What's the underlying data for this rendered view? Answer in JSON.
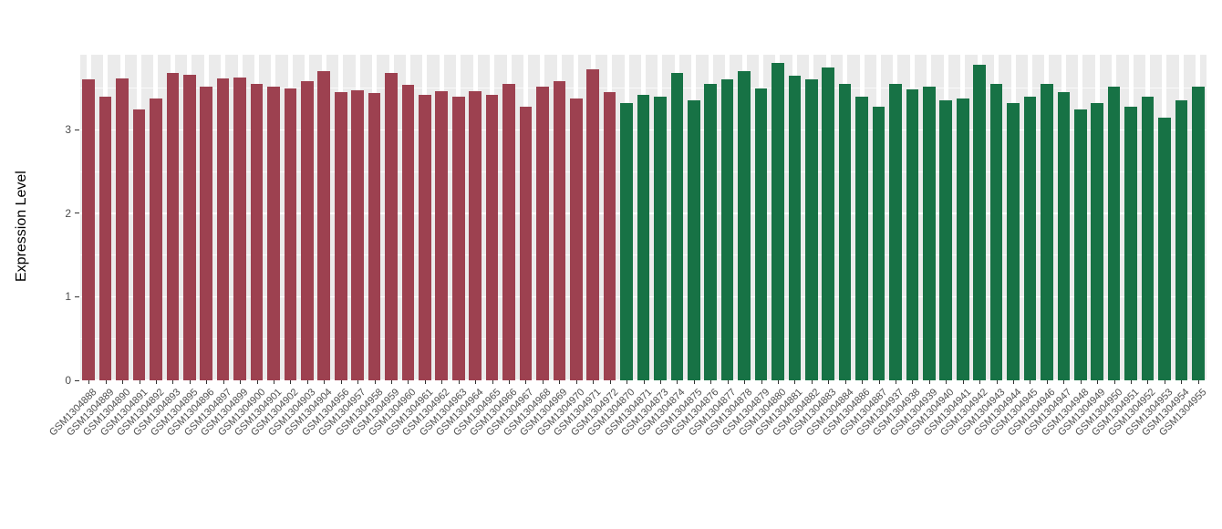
{
  "chart_data": {
    "type": "bar",
    "title": "",
    "xlabel": "",
    "ylabel": "Expression Level",
    "ylim": [
      0,
      3.9
    ],
    "yticks": [
      0,
      1,
      2,
      3
    ],
    "yticks_minor": [
      0.5,
      1.5,
      2.5,
      3.5
    ],
    "grid": true,
    "legend": "none",
    "panel_bg": "#ebebeb",
    "grid_color": "#ffffff",
    "tick_text_color": "#4d4d4d",
    "group_colors": {
      "group1": "#9d4150",
      "group2": "#177245"
    },
    "bars": [
      {
        "label": "GSM1304888",
        "value": 3.6,
        "group": "group1"
      },
      {
        "label": "GSM1304889",
        "value": 3.4,
        "group": "group1"
      },
      {
        "label": "GSM1304890",
        "value": 3.62,
        "group": "group1"
      },
      {
        "label": "GSM1304891",
        "value": 3.25,
        "group": "group1"
      },
      {
        "label": "GSM1304892",
        "value": 3.38,
        "group": "group1"
      },
      {
        "label": "GSM1304893",
        "value": 3.68,
        "group": "group1"
      },
      {
        "label": "GSM1304895",
        "value": 3.66,
        "group": "group1"
      },
      {
        "label": "GSM1304896",
        "value": 3.52,
        "group": "group1"
      },
      {
        "label": "GSM1304897",
        "value": 3.62,
        "group": "group1"
      },
      {
        "label": "GSM1304899",
        "value": 3.63,
        "group": "group1"
      },
      {
        "label": "GSM1304900",
        "value": 3.55,
        "group": "group1"
      },
      {
        "label": "GSM1304901",
        "value": 3.52,
        "group": "group1"
      },
      {
        "label": "GSM1304902",
        "value": 3.5,
        "group": "group1"
      },
      {
        "label": "GSM1304903",
        "value": 3.58,
        "group": "group1"
      },
      {
        "label": "GSM1304904",
        "value": 3.7,
        "group": "group1"
      },
      {
        "label": "GSM1304956",
        "value": 3.45,
        "group": "group1"
      },
      {
        "label": "GSM1304957",
        "value": 3.47,
        "group": "group1"
      },
      {
        "label": "GSM1304958",
        "value": 3.44,
        "group": "group1"
      },
      {
        "label": "GSM1304959",
        "value": 3.68,
        "group": "group1"
      },
      {
        "label": "GSM1304960",
        "value": 3.54,
        "group": "group1"
      },
      {
        "label": "GSM1304961",
        "value": 3.42,
        "group": "group1"
      },
      {
        "label": "GSM1304962",
        "value": 3.46,
        "group": "group1"
      },
      {
        "label": "GSM1304963",
        "value": 3.4,
        "group": "group1"
      },
      {
        "label": "GSM1304964",
        "value": 3.46,
        "group": "group1"
      },
      {
        "label": "GSM1304965",
        "value": 3.42,
        "group": "group1"
      },
      {
        "label": "GSM1304966",
        "value": 3.55,
        "group": "group1"
      },
      {
        "label": "GSM1304967",
        "value": 3.28,
        "group": "group1"
      },
      {
        "label": "GSM1304968",
        "value": 3.52,
        "group": "group1"
      },
      {
        "label": "GSM1304969",
        "value": 3.58,
        "group": "group1"
      },
      {
        "label": "GSM1304970",
        "value": 3.38,
        "group": "group1"
      },
      {
        "label": "GSM1304971",
        "value": 3.72,
        "group": "group1"
      },
      {
        "label": "GSM1304972",
        "value": 3.45,
        "group": "group1"
      },
      {
        "label": "GSM1304870",
        "value": 3.32,
        "group": "group2"
      },
      {
        "label": "GSM1304871",
        "value": 3.42,
        "group": "group2"
      },
      {
        "label": "GSM1304873",
        "value": 3.4,
        "group": "group2"
      },
      {
        "label": "GSM1304874",
        "value": 3.68,
        "group": "group2"
      },
      {
        "label": "GSM1304875",
        "value": 3.35,
        "group": "group2"
      },
      {
        "label": "GSM1304876",
        "value": 3.55,
        "group": "group2"
      },
      {
        "label": "GSM1304877",
        "value": 3.6,
        "group": "group2"
      },
      {
        "label": "GSM1304878",
        "value": 3.7,
        "group": "group2"
      },
      {
        "label": "GSM1304879",
        "value": 3.5,
        "group": "group2"
      },
      {
        "label": "GSM1304880",
        "value": 3.8,
        "group": "group2"
      },
      {
        "label": "GSM1304881",
        "value": 3.65,
        "group": "group2"
      },
      {
        "label": "GSM1304882",
        "value": 3.6,
        "group": "group2"
      },
      {
        "label": "GSM1304883",
        "value": 3.75,
        "group": "group2"
      },
      {
        "label": "GSM1304884",
        "value": 3.55,
        "group": "group2"
      },
      {
        "label": "GSM1304886",
        "value": 3.4,
        "group": "group2"
      },
      {
        "label": "GSM1304887",
        "value": 3.28,
        "group": "group2"
      },
      {
        "label": "GSM1304937",
        "value": 3.55,
        "group": "group2"
      },
      {
        "label": "GSM1304938",
        "value": 3.48,
        "group": "group2"
      },
      {
        "label": "GSM1304939",
        "value": 3.52,
        "group": "group2"
      },
      {
        "label": "GSM1304940",
        "value": 3.35,
        "group": "group2"
      },
      {
        "label": "GSM1304941",
        "value": 3.38,
        "group": "group2"
      },
      {
        "label": "GSM1304942",
        "value": 3.78,
        "group": "group2"
      },
      {
        "label": "GSM1304943",
        "value": 3.55,
        "group": "group2"
      },
      {
        "label": "GSM1304944",
        "value": 3.32,
        "group": "group2"
      },
      {
        "label": "GSM1304945",
        "value": 3.4,
        "group": "group2"
      },
      {
        "label": "GSM1304946",
        "value": 3.55,
        "group": "group2"
      },
      {
        "label": "GSM1304947",
        "value": 3.45,
        "group": "group2"
      },
      {
        "label": "GSM1304948",
        "value": 3.25,
        "group": "group2"
      },
      {
        "label": "GSM1304949",
        "value": 3.32,
        "group": "group2"
      },
      {
        "label": "GSM1304950",
        "value": 3.52,
        "group": "group2"
      },
      {
        "label": "GSM1304951",
        "value": 3.28,
        "group": "group2"
      },
      {
        "label": "GSM1304952",
        "value": 3.4,
        "group": "group2"
      },
      {
        "label": "GSM1304953",
        "value": 3.15,
        "group": "group2"
      },
      {
        "label": "GSM1304954",
        "value": 3.35,
        "group": "group2"
      },
      {
        "label": "GSM1304955",
        "value": 3.52,
        "group": "group2"
      }
    ]
  }
}
